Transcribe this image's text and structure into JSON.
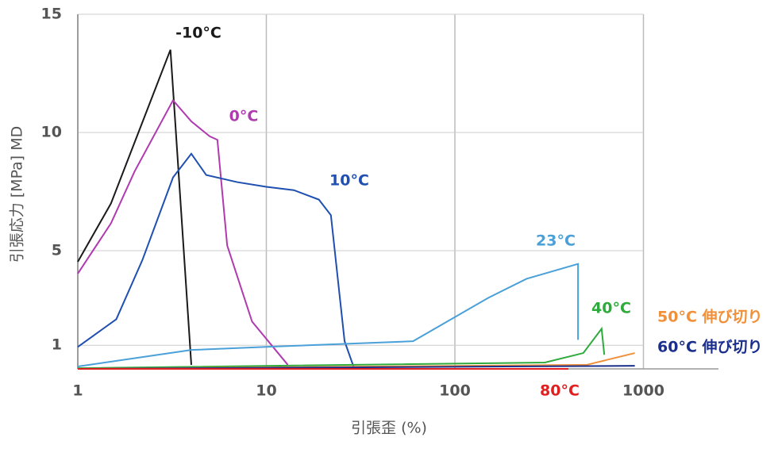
{
  "chart_data": {
    "type": "line",
    "x_label": "引張歪 (%)",
    "y_label": "引張応力 [MPa] MD",
    "xscale": "log",
    "xlim": [
      1,
      2500
    ],
    "xticks": [
      1,
      10,
      100,
      1000
    ],
    "ylim": [
      0,
      15
    ],
    "yticks": [
      1,
      5,
      10,
      15
    ],
    "grid": true,
    "series": [
      {
        "name": "-10°C",
        "color": "#1a1a1a",
        "x": [
          1,
          1.5,
          3.1,
          4.0
        ],
        "values": [
          4.53,
          7.0,
          13.5,
          0.17
        ]
      },
      {
        "name": "0°C",
        "color": "#b03ab0",
        "x": [
          1,
          1.5,
          2.0,
          3.2,
          4.0,
          5.0,
          5.5,
          6.2,
          8.4,
          13
        ],
        "values": [
          4.03,
          6.16,
          8.35,
          11.36,
          10.47,
          9.84,
          9.69,
          5.22,
          2.0,
          0.17
        ]
      },
      {
        "name": "10°C",
        "color": "#1f4fb0",
        "x": [
          1,
          1.6,
          2.2,
          3.2,
          4.0,
          4.8,
          7.0,
          10,
          14,
          19,
          22,
          26,
          29
        ],
        "values": [
          0.93,
          2.1,
          4.6,
          8.1,
          9.1,
          8.2,
          7.9,
          7.7,
          7.56,
          7.16,
          6.5,
          1.17,
          0.1
        ]
      },
      {
        "name": "23°C",
        "color": "#4aa0d8",
        "x": [
          1,
          4,
          10,
          60,
          150,
          240,
          450,
          450
        ],
        "values": [
          0.1,
          0.8,
          0.93,
          1.17,
          3.0,
          3.81,
          4.44,
          1.23
        ]
      },
      {
        "name": "40°C",
        "color": "#2faa3c",
        "x": [
          1,
          300,
          480,
          600,
          620
        ],
        "values": [
          0.03,
          0.27,
          0.67,
          1.7,
          0.6
        ]
      },
      {
        "name": "50°C 伸び切り",
        "color": "#f0903a",
        "x": [
          1,
          500,
          900
        ],
        "values": [
          0,
          0.17,
          0.67
        ]
      },
      {
        "name": "60°C 伸び切り",
        "color": "#1a2e8c",
        "x": [
          1,
          900
        ],
        "values": [
          0,
          0.13
        ]
      },
      {
        "name": "80°C",
        "color": "#e02020",
        "x": [
          1,
          400
        ],
        "values": [
          0,
          0
        ]
      }
    ]
  }
}
